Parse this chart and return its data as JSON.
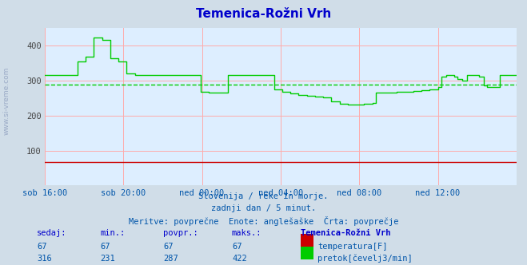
{
  "title": "Temenica-Rožni Vrh",
  "background_color": "#d0dde8",
  "plot_bg_color": "#ddeeff",
  "grid_color_major": "#ffaaaa",
  "title_color": "#0000cc",
  "text_color": "#0055aa",
  "footer_color": "#0000cc",
  "xlim": [
    0,
    288
  ],
  "ylim": [
    0,
    450
  ],
  "yticks": [
    100,
    200,
    300,
    400
  ],
  "xtick_labels": [
    "sob 16:00",
    "sob 20:00",
    "ned 00:00",
    "ned 04:00",
    "ned 08:00",
    "ned 12:00"
  ],
  "xtick_positions": [
    0,
    48,
    96,
    144,
    192,
    240
  ],
  "avg_flow": 287,
  "subtitle1": "Slovenija / reke in morje.",
  "subtitle2": "zadnji dan / 5 minut.",
  "subtitle3": "Meritve: povprečne  Enote: anglešaške  Črta: povprečje",
  "footer_headers": [
    "sedaj:",
    "min.:",
    "povpr.:",
    "maks.:",
    "Temenica-Rožni Vrh"
  ],
  "temp_row": [
    67,
    67,
    67,
    67
  ],
  "flow_row": [
    316,
    231,
    287,
    422
  ],
  "flow_color": "#00cc00",
  "temp_color": "#cc0000",
  "flow_data": [
    [
      0,
      315
    ],
    [
      10,
      315
    ],
    [
      18,
      315
    ],
    [
      20,
      355
    ],
    [
      25,
      368
    ],
    [
      30,
      422
    ],
    [
      35,
      415
    ],
    [
      40,
      362
    ],
    [
      45,
      355
    ],
    [
      50,
      320
    ],
    [
      55,
      316
    ],
    [
      60,
      316
    ],
    [
      65,
      316
    ],
    [
      70,
      316
    ],
    [
      75,
      316
    ],
    [
      80,
      316
    ],
    [
      85,
      316
    ],
    [
      90,
      316
    ],
    [
      95,
      268
    ],
    [
      100,
      265
    ],
    [
      110,
      265
    ],
    [
      112,
      316
    ],
    [
      120,
      316
    ],
    [
      125,
      316
    ],
    [
      130,
      316
    ],
    [
      135,
      316
    ],
    [
      138,
      316
    ],
    [
      140,
      275
    ],
    [
      145,
      268
    ],
    [
      150,
      262
    ],
    [
      155,
      258
    ],
    [
      160,
      255
    ],
    [
      165,
      253
    ],
    [
      170,
      252
    ],
    [
      175,
      240
    ],
    [
      180,
      233
    ],
    [
      185,
      231
    ],
    [
      190,
      232
    ],
    [
      195,
      233
    ],
    [
      200,
      235
    ],
    [
      202,
      265
    ],
    [
      205,
      265
    ],
    [
      210,
      265
    ],
    [
      215,
      267
    ],
    [
      220,
      268
    ],
    [
      225,
      270
    ],
    [
      230,
      272
    ],
    [
      235,
      275
    ],
    [
      240,
      280
    ],
    [
      242,
      310
    ],
    [
      245,
      315
    ],
    [
      250,
      310
    ],
    [
      252,
      305
    ],
    [
      255,
      300
    ],
    [
      258,
      315
    ],
    [
      260,
      316
    ],
    [
      263,
      316
    ],
    [
      265,
      310
    ],
    [
      268,
      285
    ],
    [
      270,
      280
    ],
    [
      275,
      280
    ],
    [
      278,
      316
    ],
    [
      280,
      316
    ],
    [
      285,
      316
    ],
    [
      288,
      316
    ]
  ]
}
